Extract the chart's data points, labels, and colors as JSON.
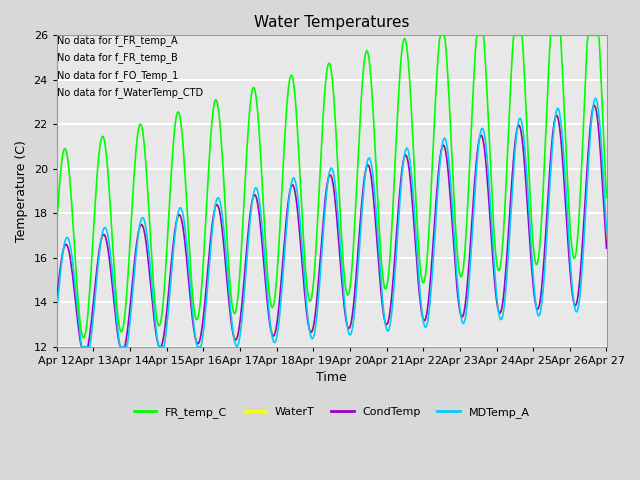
{
  "title": "Water Temperatures",
  "xlabel": "Time",
  "ylabel": "Temperature (C)",
  "ylim": [
    12,
    26
  ],
  "yticks": [
    12,
    14,
    16,
    18,
    20,
    22,
    24,
    26
  ],
  "line_colors": {
    "FR_temp_C": "#00ff00",
    "WaterT": "#ffff00",
    "CondTemp": "#9900cc",
    "MDTemp_A": "#00ccff"
  },
  "no_data_texts": [
    "No data for f_FR_temp_A",
    "No data for f_FR_temp_B",
    "No data for f_FO_Temp_1",
    "No data for f_WaterTemp_CTD"
  ],
  "bg_color": "#d8d8d8",
  "plot_bg_color": "#e8e8e8",
  "title_fontsize": 11,
  "axis_fontsize": 8,
  "legend_fontsize": 8,
  "period_days": 1.03,
  "num_points": 600
}
